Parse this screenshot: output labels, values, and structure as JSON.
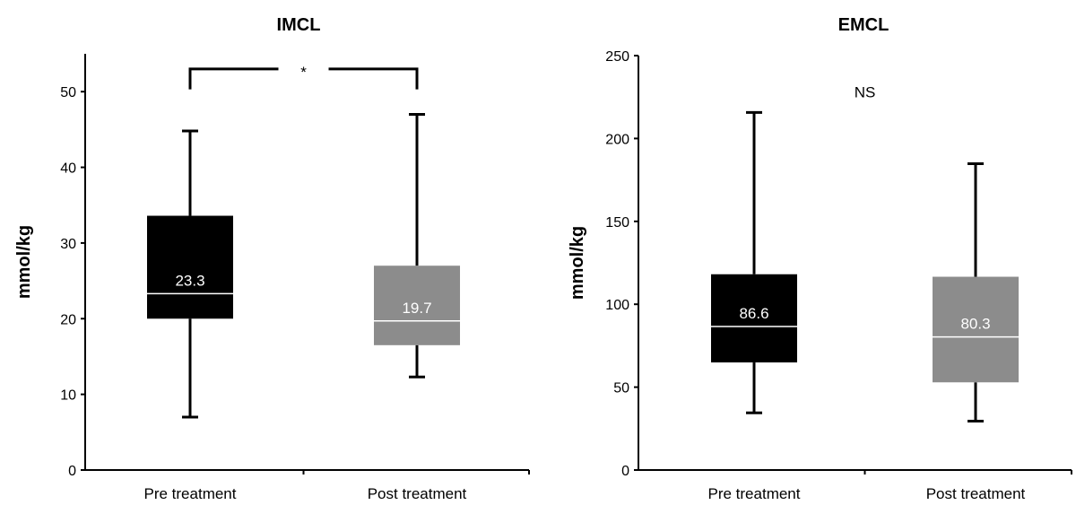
{
  "chart_data": [
    {
      "type": "box",
      "title": "IMCL",
      "xlabel": "",
      "ylabel": "mmol/kg",
      "ylim": [
        0,
        55
      ],
      "yticks": [
        "0",
        "10",
        "20",
        "30",
        "40",
        "50"
      ],
      "categories": [
        "Pre treatment",
        "Post treatment"
      ],
      "boxes": [
        {
          "category": "Pre treatment",
          "min": 7,
          "q1": 20,
          "median": 23.3,
          "q3": 33.6,
          "max": 44.8,
          "median_label": "23.3",
          "color": "#000000"
        },
        {
          "category": "Post treatment",
          "min": 12.3,
          "q1": 16.5,
          "median": 19.7,
          "q3": 27,
          "max": 47,
          "median_label": "19.7",
          "color": "#8c8c8c"
        }
      ],
      "annotation": {
        "text": "*",
        "type": "significance-bracket",
        "y": 53
      }
    },
    {
      "type": "box",
      "title": "EMCL",
      "xlabel": "",
      "ylabel": "mmol/kg",
      "ylim": [
        0,
        250
      ],
      "yticks": [
        "0",
        "50",
        "100",
        "150",
        "200",
        "250"
      ],
      "categories": [
        "Pre treatment",
        "Post treatment"
      ],
      "boxes": [
        {
          "category": "Pre treatment",
          "min": 34.5,
          "q1": 64.9,
          "median": 86.6,
          "q3": 118.1,
          "max": 215.7,
          "median_label": "86.6",
          "color": "#000000"
        },
        {
          "category": "Post treatment",
          "min": 29.5,
          "q1": 52.9,
          "median": 80.3,
          "q3": 116.6,
          "max": 184.8,
          "median_label": "80.3",
          "color": "#8c8c8c"
        }
      ],
      "annotation": {
        "text": "NS",
        "type": "text",
        "y": 228
      }
    }
  ]
}
